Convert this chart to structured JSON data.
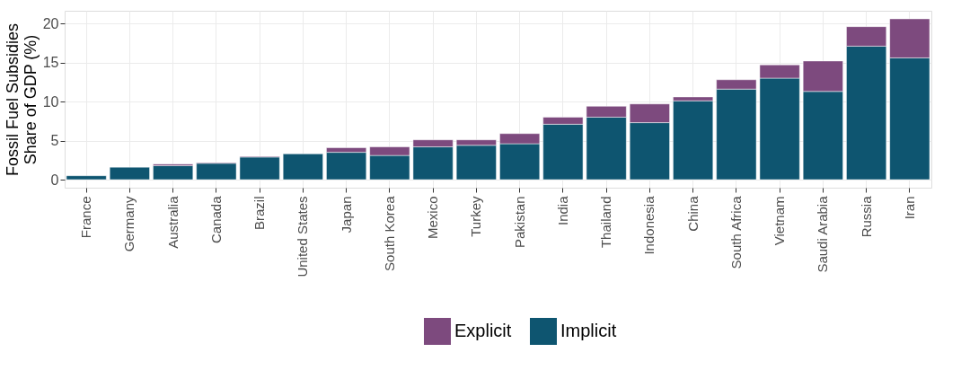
{
  "chart_data": {
    "type": "bar",
    "stacked": true,
    "ylabel": "Fossil Fuel Subsidies\nShare of GDP (%)",
    "categories": [
      "France",
      "Germany",
      "Australia",
      "Canada",
      "Brazil",
      "United States",
      "Japan",
      "South Korea",
      "Mexico",
      "Turkey",
      "Pakistan",
      "India",
      "Thailand",
      "Indonesia",
      "China",
      "South Africa",
      "Vietnam",
      "Saudi Arabia",
      "Russia",
      "Iran"
    ],
    "series": [
      {
        "name": "Implicit",
        "color": "#0e5570",
        "values": [
          0.5,
          1.6,
          1.8,
          2.1,
          2.9,
          3.3,
          3.5,
          3.1,
          4.2,
          4.4,
          4.6,
          7.1,
          8.0,
          7.3,
          10.1,
          11.6,
          13.0,
          11.3,
          17.1,
          15.6
        ]
      },
      {
        "name": "Explicit",
        "color": "#7d4a7e",
        "values": [
          null,
          null,
          0.2,
          0.1,
          0.1,
          null,
          0.6,
          1.1,
          0.9,
          0.7,
          1.3,
          0.9,
          1.4,
          2.4,
          0.5,
          1.2,
          1.7,
          3.9,
          2.5,
          5.0
        ]
      }
    ],
    "ylim": [
      -1.03,
      21.63
    ],
    "yticks": [
      0,
      5,
      10,
      15,
      20
    ],
    "grid": true,
    "legend": "bottom"
  }
}
